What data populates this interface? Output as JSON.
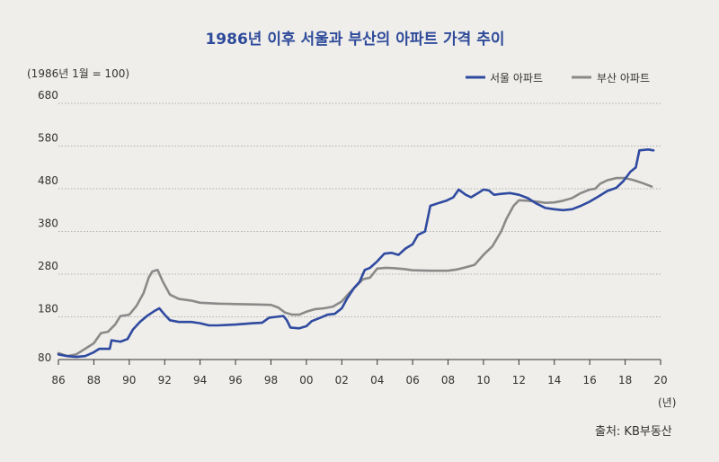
{
  "chart_data": {
    "type": "line",
    "title": "1986년 이후 서울과 부산의 아파트 가격 추이",
    "ylabel": "(1986년 1월 = 100)",
    "xlabel": "(년)",
    "source": "출처: KB부동산",
    "ylim": [
      80,
      680
    ],
    "xlim": [
      1986,
      2020
    ],
    "y_ticks": [
      "80",
      "180",
      "280",
      "380",
      "480",
      "580",
      "680"
    ],
    "x_ticks": [
      "86",
      "88",
      "90",
      "92",
      "94",
      "96",
      "98",
      "00",
      "02",
      "04",
      "06",
      "08",
      "10",
      "12",
      "14",
      "16",
      "18",
      "20"
    ],
    "grid": "horizontal dotted",
    "legend_position": "top-right",
    "colors": {
      "seoul": "#2f4aa0",
      "busan": "#8a8a8a"
    },
    "series": [
      {
        "name": "서울 아파트",
        "points": [
          [
            1986.0,
            92
          ],
          [
            1986.5,
            88
          ],
          [
            1987.0,
            86
          ],
          [
            1987.5,
            88
          ],
          [
            1988.0,
            97
          ],
          [
            1988.3,
            105
          ],
          [
            1988.9,
            105
          ],
          [
            1989.0,
            125
          ],
          [
            1989.5,
            122
          ],
          [
            1989.9,
            128
          ],
          [
            1990.2,
            150
          ],
          [
            1990.6,
            168
          ],
          [
            1991.0,
            182
          ],
          [
            1991.4,
            193
          ],
          [
            1991.7,
            200
          ],
          [
            1992.0,
            185
          ],
          [
            1992.3,
            172
          ],
          [
            1992.8,
            168
          ],
          [
            1993.5,
            168
          ],
          [
            1994.0,
            165
          ],
          [
            1994.5,
            160
          ],
          [
            1995.0,
            160
          ],
          [
            1996.0,
            162
          ],
          [
            1997.0,
            165
          ],
          [
            1997.5,
            166
          ],
          [
            1997.9,
            178
          ],
          [
            1998.3,
            180
          ],
          [
            1998.7,
            182
          ],
          [
            1998.9,
            172
          ],
          [
            1999.1,
            155
          ],
          [
            1999.6,
            153
          ],
          [
            2000.0,
            158
          ],
          [
            2000.3,
            170
          ],
          [
            2000.8,
            178
          ],
          [
            2001.2,
            185
          ],
          [
            2001.6,
            187
          ],
          [
            2002.0,
            200
          ],
          [
            2002.3,
            223
          ],
          [
            2002.7,
            248
          ],
          [
            2003.0,
            262
          ],
          [
            2003.3,
            290
          ],
          [
            2003.6,
            295
          ],
          [
            2004.0,
            310
          ],
          [
            2004.4,
            328
          ],
          [
            2004.8,
            330
          ],
          [
            2005.2,
            325
          ],
          [
            2005.6,
            340
          ],
          [
            2006.0,
            350
          ],
          [
            2006.3,
            372
          ],
          [
            2006.7,
            380
          ],
          [
            2007.0,
            440
          ],
          [
            2007.5,
            447
          ],
          [
            2007.9,
            452
          ],
          [
            2008.3,
            460
          ],
          [
            2008.6,
            478
          ],
          [
            2009.0,
            466
          ],
          [
            2009.3,
            460
          ],
          [
            2009.7,
            470
          ],
          [
            2010.0,
            478
          ],
          [
            2010.3,
            476
          ],
          [
            2010.6,
            466
          ],
          [
            2011.0,
            468
          ],
          [
            2011.5,
            470
          ],
          [
            2012.0,
            466
          ],
          [
            2012.5,
            458
          ],
          [
            2013.0,
            445
          ],
          [
            2013.5,
            435
          ],
          [
            2014.0,
            432
          ],
          [
            2014.5,
            430
          ],
          [
            2015.0,
            432
          ],
          [
            2015.5,
            440
          ],
          [
            2016.0,
            450
          ],
          [
            2016.5,
            462
          ],
          [
            2017.0,
            475
          ],
          [
            2017.5,
            482
          ],
          [
            2017.9,
            498
          ],
          [
            2018.3,
            520
          ],
          [
            2018.6,
            530
          ],
          [
            2018.8,
            570
          ],
          [
            2019.3,
            572
          ],
          [
            2019.6,
            570
          ]
        ]
      },
      {
        "name": "부산 아파트",
        "points": [
          [
            1986.0,
            95
          ],
          [
            1986.5,
            88
          ],
          [
            1987.0,
            92
          ],
          [
            1987.5,
            105
          ],
          [
            1988.0,
            118
          ],
          [
            1988.4,
            142
          ],
          [
            1988.8,
            145
          ],
          [
            1989.2,
            162
          ],
          [
            1989.5,
            182
          ],
          [
            1990.0,
            185
          ],
          [
            1990.4,
            205
          ],
          [
            1990.8,
            235
          ],
          [
            1991.1,
            272
          ],
          [
            1991.3,
            286
          ],
          [
            1991.6,
            290
          ],
          [
            1991.9,
            262
          ],
          [
            1992.3,
            232
          ],
          [
            1992.8,
            222
          ],
          [
            1993.5,
            218
          ],
          [
            1994.0,
            213
          ],
          [
            1995.0,
            211
          ],
          [
            1996.0,
            210
          ],
          [
            1997.0,
            209
          ],
          [
            1998.0,
            208
          ],
          [
            1998.4,
            202
          ],
          [
            1998.8,
            190
          ],
          [
            1999.2,
            185
          ],
          [
            1999.6,
            185
          ],
          [
            2000.0,
            192
          ],
          [
            2000.5,
            198
          ],
          [
            2001.0,
            200
          ],
          [
            2001.5,
            204
          ],
          [
            2002.0,
            216
          ],
          [
            2002.4,
            235
          ],
          [
            2002.8,
            252
          ],
          [
            2003.2,
            268
          ],
          [
            2003.6,
            272
          ],
          [
            2004.0,
            293
          ],
          [
            2004.5,
            295
          ],
          [
            2005.0,
            294
          ],
          [
            2005.5,
            292
          ],
          [
            2006.0,
            289
          ],
          [
            2007.0,
            288
          ],
          [
            2008.0,
            288
          ],
          [
            2008.5,
            291
          ],
          [
            2009.0,
            296
          ],
          [
            2009.5,
            302
          ],
          [
            2010.0,
            325
          ],
          [
            2010.5,
            345
          ],
          [
            2011.0,
            380
          ],
          [
            2011.3,
            410
          ],
          [
            2011.7,
            440
          ],
          [
            2012.0,
            453
          ],
          [
            2012.5,
            452
          ],
          [
            2013.0,
            450
          ],
          [
            2013.5,
            447
          ],
          [
            2014.0,
            448
          ],
          [
            2014.5,
            452
          ],
          [
            2015.0,
            458
          ],
          [
            2015.5,
            470
          ],
          [
            2016.0,
            478
          ],
          [
            2016.3,
            480
          ],
          [
            2016.6,
            492
          ],
          [
            2017.0,
            500
          ],
          [
            2017.5,
            505
          ],
          [
            2018.0,
            505
          ],
          [
            2018.5,
            500
          ],
          [
            2019.0,
            493
          ],
          [
            2019.5,
            485
          ]
        ]
      }
    ]
  }
}
